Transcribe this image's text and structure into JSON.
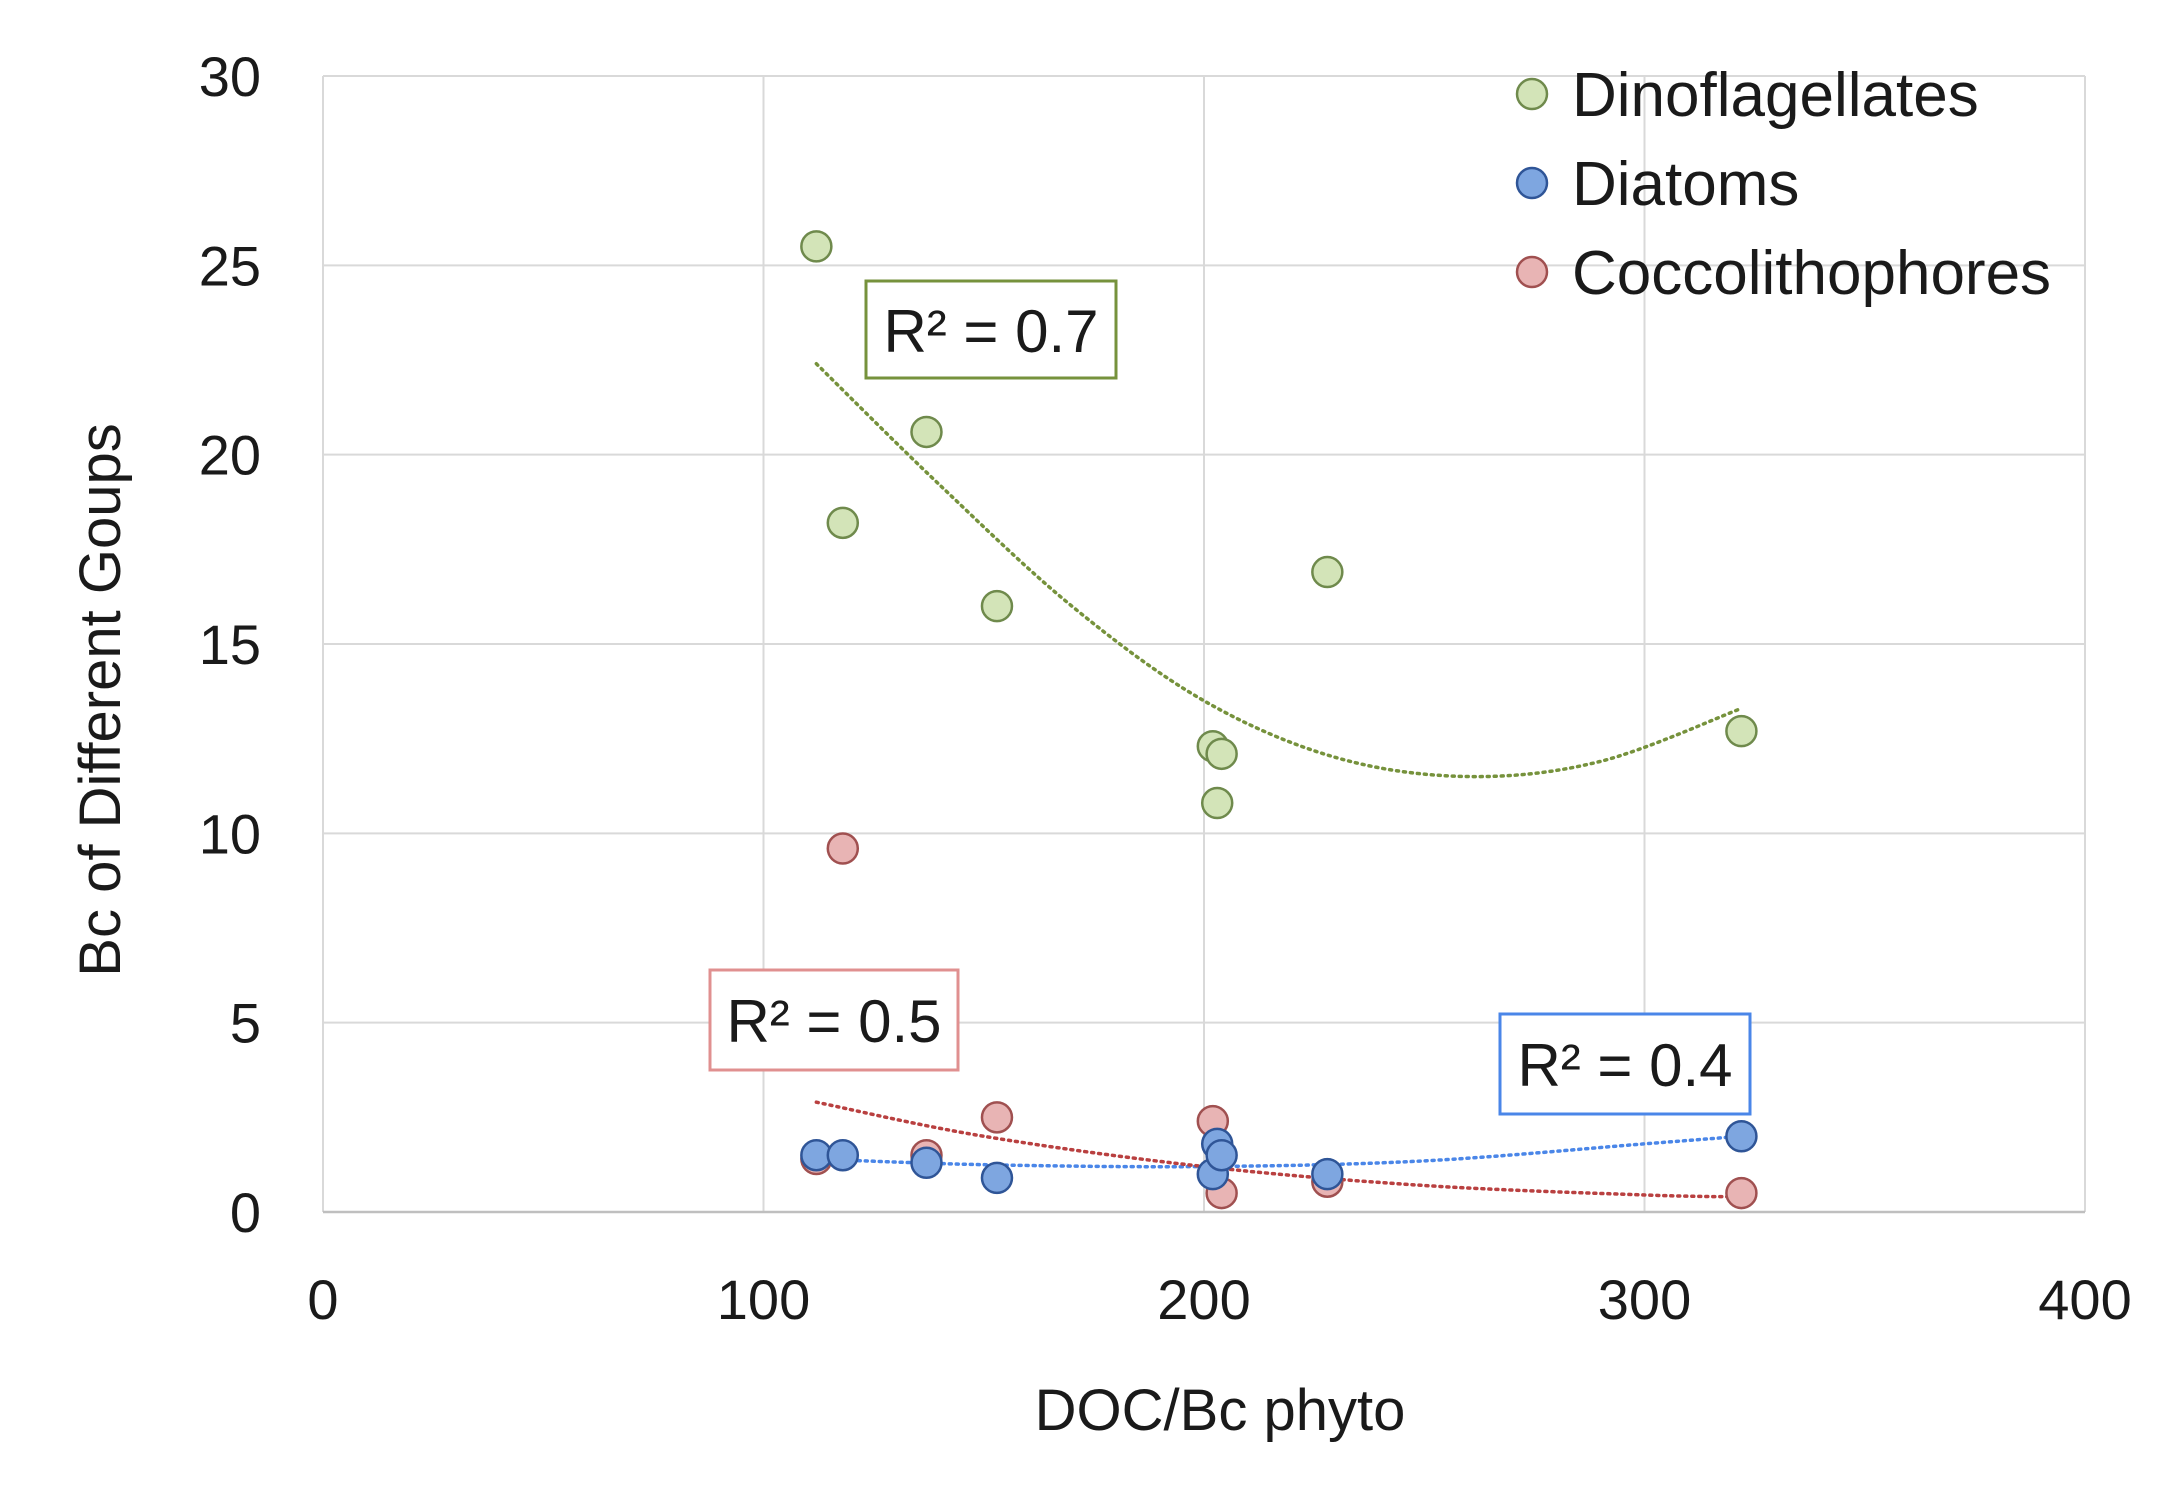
{
  "chart_data": {
    "type": "scatter",
    "title": "",
    "xlabel": "DOC/Bc phyto",
    "ylabel": "Bc of Different Goups",
    "xlim": [
      0,
      400
    ],
    "ylim": [
      0,
      30
    ],
    "xticks": [
      0,
      100,
      200,
      300,
      400
    ],
    "yticks": [
      0,
      5,
      10,
      15,
      20,
      25,
      30
    ],
    "grid": true,
    "legend_position": "top-right",
    "series": [
      {
        "name": "Dinoflagellates",
        "color": "#d3e4b8",
        "edge": "#6f8a4c",
        "trend_color": "#76923c",
        "x": [
          112,
          118,
          137,
          153,
          202,
          204,
          203,
          228,
          322
        ],
        "y": [
          25.5,
          18.2,
          20.6,
          16.0,
          12.3,
          12.1,
          10.8,
          16.9,
          12.7
        ],
        "trend": {
          "x": [
            112,
            140,
            170,
            200,
            230,
            260,
            290,
            322
          ],
          "y": [
            22.4,
            19.2,
            16.0,
            13.5,
            12.0,
            11.5,
            11.9,
            13.3
          ]
        },
        "r2_label": "R² = 0.7",
        "r2_box_color": "#76923c"
      },
      {
        "name": "Diatoms",
        "color": "#7ea6e0",
        "edge": "#2f5597",
        "trend_color": "#4a86e8",
        "x": [
          112,
          118,
          137,
          153,
          202,
          203,
          204,
          228,
          322
        ],
        "y": [
          1.5,
          1.5,
          1.3,
          0.9,
          1.0,
          1.8,
          1.5,
          1.0,
          2.0
        ],
        "trend": {
          "x": [
            112,
            150,
            200,
            250,
            300,
            322
          ],
          "y": [
            1.4,
            1.25,
            1.2,
            1.35,
            1.8,
            2.0
          ]
        },
        "r2_label": "R² = 0.4",
        "r2_box_color": "#4a86e8"
      },
      {
        "name": "Coccolithophores",
        "color": "#e8b4b4",
        "edge": "#a05050",
        "trend_color": "#b94040",
        "x": [
          118,
          112,
          137,
          153,
          202,
          204,
          228,
          322
        ],
        "y": [
          9.6,
          1.4,
          1.5,
          2.5,
          2.4,
          0.5,
          0.8,
          0.5
        ],
        "trend": {
          "x": [
            112,
            150,
            200,
            250,
            300,
            322
          ],
          "y": [
            2.9,
            2.0,
            1.2,
            0.7,
            0.45,
            0.4
          ]
        },
        "r2_label": "R² = 0.5",
        "r2_box_color": "#e09090"
      }
    ]
  }
}
